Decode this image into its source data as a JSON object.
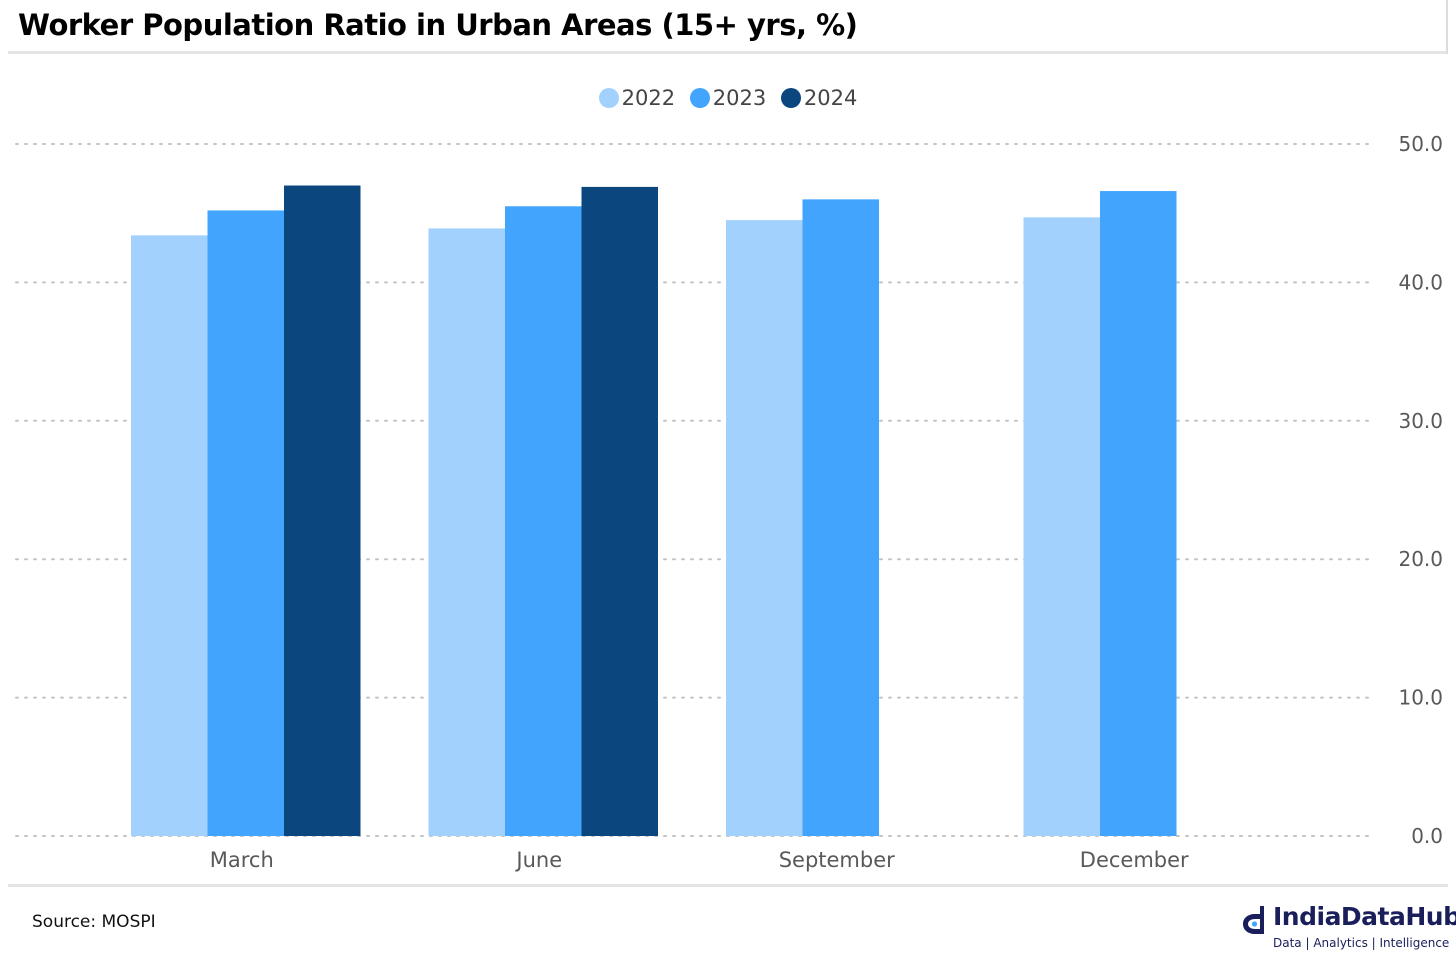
{
  "header": {
    "title": "Worker Population Ratio in Urban Areas (15+ yrs, %)"
  },
  "footer": {
    "source": "Source: MOSPI",
    "brand_name": "IndiaDataHub",
    "brand_tagline": "Data | Analytics | Intelligence"
  },
  "colors": {
    "s2022": "#a2d1fd",
    "s2023": "#42a4fd",
    "s2024": "#0b477e",
    "grid": "#c4c4c4",
    "tick": "#595959"
  },
  "chart_data": {
    "type": "bar",
    "title": "Worker Population Ratio in Urban Areas (15+ yrs, %)",
    "categories": [
      "March",
      "June",
      "September",
      "December"
    ],
    "series": [
      {
        "name": "2022",
        "color": "#a2d1fd",
        "values": [
          43.4,
          43.9,
          44.5,
          44.7
        ]
      },
      {
        "name": "2023",
        "color": "#42a4fd",
        "values": [
          45.2,
          45.5,
          46.0,
          46.6
        ]
      },
      {
        "name": "2024",
        "color": "#0b477e",
        "values": [
          47.0,
          46.9,
          null,
          null
        ]
      }
    ],
    "ylim": [
      0,
      50
    ],
    "yticks": [
      "0.0",
      "10.0",
      "20.0",
      "30.0",
      "40.0",
      "50.0"
    ],
    "y_axis_position": "right",
    "grid": true,
    "legend_position": "top-center"
  }
}
